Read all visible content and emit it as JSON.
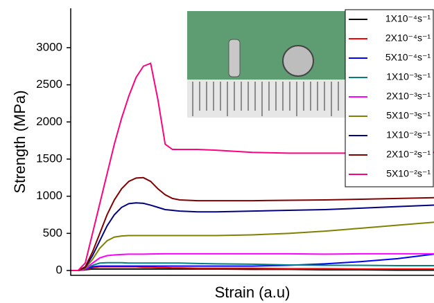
{
  "chart_data": {
    "type": "line",
    "x_label": "Strain (a.u)",
    "y_label": "Strength (MPa)",
    "x": [
      0,
      2,
      4,
      6,
      8,
      10,
      12,
      14,
      16,
      18,
      20,
      22,
      24,
      26,
      28,
      30,
      35,
      40,
      50,
      60,
      70,
      80,
      90,
      100
    ],
    "xlim": [
      0,
      100
    ],
    "ylim": [
      -65,
      3530
    ],
    "yticks": [
      0,
      500,
      1000,
      1500,
      2000,
      2500,
      3000
    ],
    "series": [
      {
        "name": "1X10⁻⁴s⁻¹",
        "color": "#000000",
        "values": [
          0,
          0,
          10,
          20,
          20,
          20,
          20,
          20,
          20,
          20,
          20,
          20,
          20,
          20,
          20,
          20,
          20,
          20,
          15,
          15,
          10,
          10,
          5,
          5
        ]
      },
      {
        "name": "2X10⁻⁴s⁻¹",
        "color": "#ff0000",
        "values": [
          0,
          0,
          15,
          40,
          50,
          50,
          50,
          50,
          50,
          50,
          45,
          45,
          40,
          40,
          35,
          35,
          30,
          30,
          30,
          25,
          25,
          20,
          20,
          20
        ]
      },
      {
        "name": "5X10⁻⁴s⁻¹",
        "color": "#0000ff",
        "values": [
          0,
          0,
          20,
          50,
          60,
          60,
          60,
          60,
          60,
          60,
          60,
          60,
          60,
          60,
          60,
          60,
          60,
          60,
          60,
          70,
          90,
          120,
          160,
          220
        ]
      },
      {
        "name": "1X10⁻³s⁻¹",
        "color": "#008080",
        "values": [
          0,
          0,
          25,
          70,
          100,
          105,
          105,
          105,
          100,
          100,
          100,
          100,
          100,
          100,
          100,
          100,
          95,
          90,
          85,
          75,
          70,
          70,
          65,
          65
        ]
      },
      {
        "name": "2X10⁻³s⁻¹",
        "color": "#ff00ff",
        "values": [
          0,
          0,
          20,
          100,
          170,
          200,
          210,
          215,
          220,
          220,
          220,
          222,
          224,
          225,
          225,
          225,
          225,
          225,
          225,
          225,
          220,
          225,
          225,
          225
        ]
      },
      {
        "name": "5X10⁻³s⁻¹",
        "color": "#808000",
        "values": [
          0,
          0,
          30,
          150,
          300,
          400,
          450,
          465,
          470,
          470,
          470,
          470,
          470,
          470,
          470,
          470,
          470,
          470,
          480,
          500,
          530,
          570,
          610,
          650
        ]
      },
      {
        "name": "1X10⁻²s⁻¹",
        "color": "#000080",
        "values": [
          0,
          0,
          40,
          200,
          400,
          600,
          750,
          850,
          900,
          910,
          905,
          880,
          850,
          820,
          810,
          800,
          790,
          790,
          800,
          810,
          820,
          840,
          860,
          880
        ]
      },
      {
        "name": "2X10⁻²s⁻¹",
        "color": "#800000",
        "values": [
          0,
          0,
          50,
          250,
          500,
          750,
          950,
          1100,
          1200,
          1245,
          1250,
          1200,
          1100,
          1020,
          970,
          950,
          940,
          940,
          940,
          945,
          950,
          960,
          970,
          980
        ]
      },
      {
        "name": "5X10⁻²s⁻¹",
        "color": "#ff0080",
        "values": [
          0,
          0,
          100,
          500,
          900,
          1300,
          1700,
          2050,
          2350,
          2600,
          2750,
          2790,
          2300,
          1700,
          1630,
          1630,
          1630,
          1620,
          1590,
          1580,
          1580,
          1580,
          1590,
          1590
        ]
      }
    ]
  }
}
